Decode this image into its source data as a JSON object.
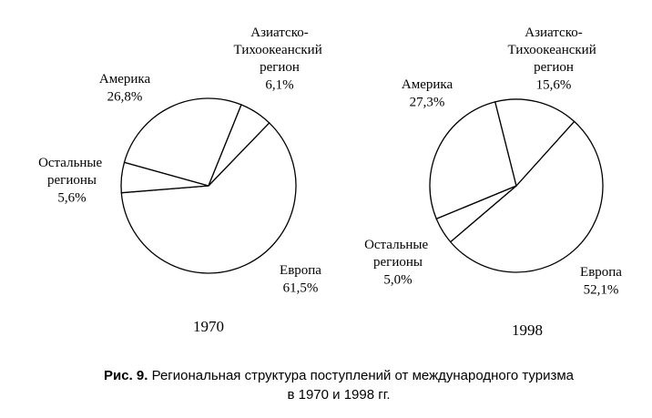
{
  "chart_data": [
    {
      "type": "pie",
      "x_label": "1970",
      "categories": [
        "Европа",
        "Остальные регионы",
        "Америка",
        "Азиатско-Тихоокеанский регион"
      ],
      "values": [
        61.5,
        5.6,
        26.8,
        6.1
      ],
      "value_labels": [
        "61,5%",
        "5,6%",
        "26,8%",
        "6,1%"
      ]
    },
    {
      "type": "pie",
      "x_label": "1998",
      "categories": [
        "Европа",
        "Остальные регионы",
        "Америка",
        "Азиатско-Тихоокеанский регион"
      ],
      "values": [
        52.1,
        5.0,
        27.3,
        15.6
      ],
      "value_labels": [
        "52,1%",
        "5,0%",
        "27,3%",
        "15,6%"
      ]
    }
  ],
  "caption": {
    "label": "Рис. 9.",
    "lines": [
      "Региональная структура поступлений от международного туризма",
      "в 1970 и 1998 гг."
    ]
  }
}
